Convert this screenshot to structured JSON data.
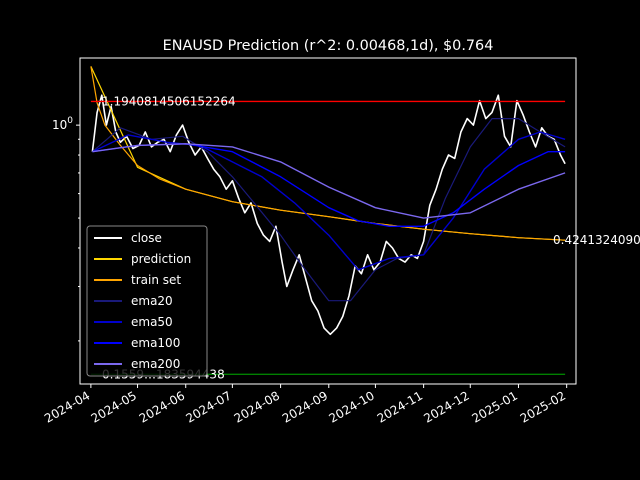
{
  "chart_data": {
    "type": "line",
    "title": "ENAUSD Prediction (r^2: 0.00468,1d), $0.764",
    "xlabel": "",
    "ylabel": "",
    "yscale": "log",
    "x_tick_labels": [
      "2024-04",
      "2024-05",
      "2024-06",
      "2024-07",
      "2024-08",
      "2024-09",
      "2024-10",
      "2024-11",
      "2024-12",
      "2025-01",
      "2025-02"
    ],
    "x_tick_dates": [
      "2024-04-01",
      "2024-05-01",
      "2024-06-01",
      "2024-07-01",
      "2024-08-01",
      "2024-09-01",
      "2024-10-01",
      "2024-11-01",
      "2024-12-01",
      "2025-01-01",
      "2025-02-01"
    ],
    "y_tick_labels": [
      "10^0"
    ],
    "xlim": [
      "2024-03-25",
      "2025-02-07"
    ],
    "ylim": [
      0.145,
      1.65
    ],
    "grid": false,
    "legend_position": "lower-left",
    "annotations": [
      {
        "text": "1.1940814506152264",
        "value": 1.1940814506152264
      },
      {
        "text": "0.4241324090",
        "value": 0.424132409
      },
      {
        "text": "0.1559…183594438",
        "value": 0.1559
      }
    ],
    "series": [
      {
        "name": "close",
        "color": "#ffffff",
        "width": 1.6,
        "x": [
          "2024-04-02",
          "2024-04-05",
          "2024-04-08",
          "2024-04-11",
          "2024-04-14",
          "2024-04-17",
          "2024-04-20",
          "2024-04-24",
          "2024-04-28",
          "2024-05-02",
          "2024-05-06",
          "2024-05-10",
          "2024-05-14",
          "2024-05-18",
          "2024-05-22",
          "2024-05-26",
          "2024-05-30",
          "2024-06-03",
          "2024-06-07",
          "2024-06-11",
          "2024-06-15",
          "2024-06-19",
          "2024-06-23",
          "2024-06-27",
          "2024-07-01",
          "2024-07-05",
          "2024-07-09",
          "2024-07-13",
          "2024-07-17",
          "2024-07-21",
          "2024-07-25",
          "2024-07-29",
          "2024-08-02",
          "2024-08-05",
          "2024-08-09",
          "2024-08-13",
          "2024-08-17",
          "2024-08-21",
          "2024-08-25",
          "2024-08-29",
          "2024-09-02",
          "2024-09-06",
          "2024-09-10",
          "2024-09-14",
          "2024-09-18",
          "2024-09-22",
          "2024-09-26",
          "2024-09-30",
          "2024-10-04",
          "2024-10-08",
          "2024-10-12",
          "2024-10-16",
          "2024-10-20",
          "2024-10-24",
          "2024-10-28",
          "2024-11-01",
          "2024-11-05",
          "2024-11-09",
          "2024-11-13",
          "2024-11-17",
          "2024-11-21",
          "2024-11-25",
          "2024-11-29",
          "2024-12-03",
          "2024-12-07",
          "2024-12-11",
          "2024-12-15",
          "2024-12-19",
          "2024-12-23",
          "2024-12-27",
          "2024-12-31",
          "2025-01-04",
          "2025-01-08",
          "2025-01-12",
          "2025-01-16",
          "2025-01-20",
          "2025-01-24",
          "2025-01-28",
          "2025-01-31"
        ],
        "values": [
          0.82,
          1.1,
          1.25,
          1.0,
          1.15,
          0.95,
          0.88,
          0.92,
          0.84,
          0.86,
          0.95,
          0.85,
          0.88,
          0.9,
          0.82,
          0.93,
          1.0,
          0.88,
          0.8,
          0.85,
          0.78,
          0.72,
          0.68,
          0.62,
          0.66,
          0.58,
          0.52,
          0.56,
          0.48,
          0.44,
          0.42,
          0.47,
          0.36,
          0.3,
          0.34,
          0.38,
          0.32,
          0.27,
          0.25,
          0.22,
          0.21,
          0.22,
          0.24,
          0.28,
          0.35,
          0.33,
          0.38,
          0.34,
          0.36,
          0.42,
          0.4,
          0.37,
          0.36,
          0.38,
          0.37,
          0.42,
          0.55,
          0.62,
          0.72,
          0.8,
          0.78,
          0.95,
          1.05,
          1.0,
          1.2,
          1.05,
          1.1,
          1.25,
          0.92,
          0.85,
          1.2,
          1.08,
          0.95,
          0.85,
          0.98,
          0.92,
          0.9,
          0.8,
          0.75
        ]
      },
      {
        "name": "prediction",
        "color": "#ffd700",
        "width": 1.2,
        "x": [
          "2024-04-01",
          "2024-05-01",
          "2024-06-01",
          "2024-07-01",
          "2024-08-01",
          "2024-09-01",
          "2024-10-01",
          "2024-11-01",
          "2024-12-01",
          "2025-01-01",
          "2025-01-31"
        ],
        "values": [
          1.55,
          0.73,
          0.62,
          0.565,
          0.53,
          0.505,
          0.48,
          0.46,
          0.445,
          0.432,
          0.424
        ]
      },
      {
        "name": "train set",
        "color": "#ffa500",
        "width": 1.2,
        "x": [
          "2024-04-01",
          "2024-04-05",
          "2024-04-10",
          "2024-04-20",
          "2024-05-01",
          "2024-05-15",
          "2024-06-01",
          "2024-07-01",
          "2024-08-01",
          "2024-09-01",
          "2024-10-01",
          "2024-11-01",
          "2024-12-01",
          "2025-01-01",
          "2025-01-31"
        ],
        "values": [
          1.55,
          1.18,
          1.0,
          0.86,
          0.74,
          0.67,
          0.62,
          0.565,
          0.53,
          0.505,
          0.48,
          0.46,
          0.445,
          0.432,
          0.424
        ]
      },
      {
        "name": "ema20",
        "color": "#1a1a7a",
        "width": 1.2,
        "x": [
          "2024-04-02",
          "2024-04-20",
          "2024-05-10",
          "2024-05-30",
          "2024-06-15",
          "2024-07-01",
          "2024-07-15",
          "2024-08-01",
          "2024-08-15",
          "2024-09-01",
          "2024-09-15",
          "2024-10-01",
          "2024-10-15",
          "2024-11-01",
          "2024-11-15",
          "2024-12-01",
          "2024-12-15",
          "2025-01-01",
          "2025-01-15",
          "2025-01-31"
        ],
        "values": [
          0.82,
          0.98,
          0.9,
          0.92,
          0.82,
          0.68,
          0.56,
          0.44,
          0.35,
          0.27,
          0.27,
          0.34,
          0.37,
          0.38,
          0.58,
          0.85,
          1.05,
          1.05,
          0.95,
          0.85
        ]
      },
      {
        "name": "ema50",
        "color": "#0000cd",
        "width": 1.4,
        "x": [
          "2024-04-02",
          "2024-04-25",
          "2024-05-20",
          "2024-06-10",
          "2024-07-01",
          "2024-07-20",
          "2024-08-10",
          "2024-09-01",
          "2024-09-20",
          "2024-10-10",
          "2024-11-01",
          "2024-11-20",
          "2024-12-10",
          "2025-01-01",
          "2025-01-15",
          "2025-01-31"
        ],
        "values": [
          0.82,
          0.93,
          0.88,
          0.86,
          0.76,
          0.68,
          0.56,
          0.44,
          0.34,
          0.37,
          0.38,
          0.5,
          0.72,
          0.9,
          0.95,
          0.9
        ]
      },
      {
        "name": "ema100",
        "color": "#0000ff",
        "width": 1.4,
        "x": [
          "2024-04-02",
          "2024-05-01",
          "2024-06-01",
          "2024-07-01",
          "2024-08-01",
          "2024-09-01",
          "2024-09-20",
          "2024-10-10",
          "2024-11-01",
          "2024-11-20",
          "2024-12-10",
          "2025-01-01",
          "2025-01-20",
          "2025-01-31"
        ],
        "values": [
          0.82,
          0.86,
          0.87,
          0.82,
          0.68,
          0.54,
          0.49,
          0.47,
          0.47,
          0.52,
          0.62,
          0.74,
          0.82,
          0.82
        ]
      },
      {
        "name": "ema200",
        "color": "#7b68ee",
        "width": 1.4,
        "x": [
          "2024-04-02",
          "2024-05-01",
          "2024-06-01",
          "2024-07-01",
          "2024-08-01",
          "2024-09-01",
          "2024-10-01",
          "2024-11-01",
          "2024-12-01",
          "2025-01-01",
          "2025-01-31"
        ],
        "values": [
          0.82,
          0.86,
          0.87,
          0.85,
          0.76,
          0.63,
          0.54,
          0.5,
          0.52,
          0.62,
          0.7
        ]
      },
      {
        "name": "",
        "color": "#ff0000",
        "width": 1.4,
        "x": [
          "2024-04-01",
          "2025-01-31"
        ],
        "values": [
          1.194,
          1.194
        ]
      },
      {
        "name": "",
        "color": "#008000",
        "width": 1.4,
        "x": [
          "2024-04-01",
          "2025-01-31"
        ],
        "values": [
          0.1559,
          0.1559
        ]
      }
    ]
  }
}
